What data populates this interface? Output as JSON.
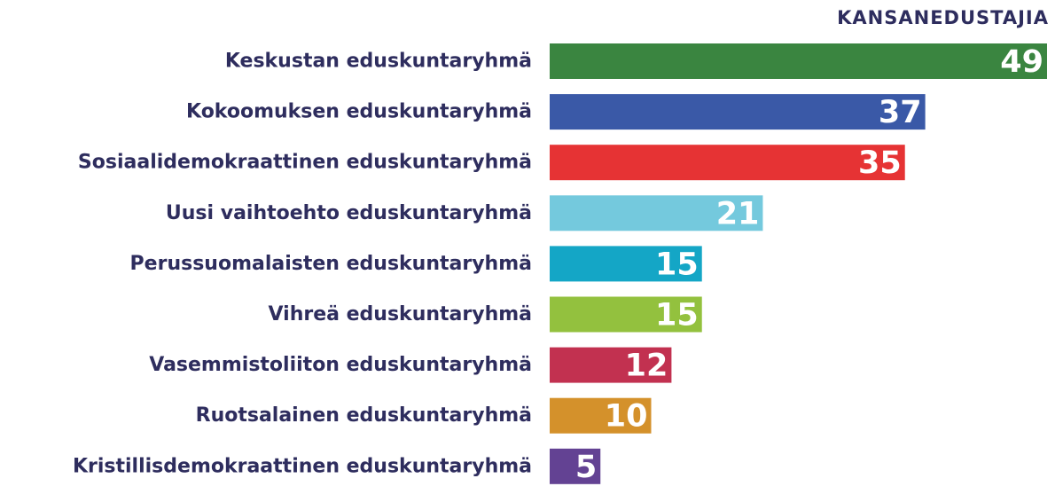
{
  "chart_data": {
    "type": "bar",
    "orientation": "horizontal",
    "title": "",
    "xlabel": "",
    "ylabel": "",
    "value_header": "KANSANEDUSTAJIA",
    "categories": [
      "Keskustan eduskuntaryhmä",
      "Kokoomuksen eduskuntaryhmä",
      "Sosiaalidemokraattinen eduskuntaryhmä",
      "Uusi vaihtoehto eduskuntaryhmä",
      "Perussuomalaisten eduskuntaryhmä",
      "Vihreä eduskuntaryhmä",
      "Vasemmistoliiton eduskuntaryhmä",
      "Ruotsalainen eduskuntaryhmä",
      "Kristillisdemokraattinen eduskuntaryhmä"
    ],
    "values": [
      49,
      37,
      35,
      21,
      15,
      15,
      12,
      10,
      5
    ],
    "value_labels": [
      "49",
      "37",
      "35",
      "21",
      "15",
      "15",
      "12",
      "10",
      "5"
    ],
    "colors": [
      "#3a8540",
      "#3a59a7",
      "#e63334",
      "#74c9dd",
      "#14a6c6",
      "#93c13e",
      "#c23150",
      "#d4912b",
      "#634293"
    ],
    "xlim": [
      0,
      49
    ],
    "grid": false,
    "legend": "none",
    "value_labels_position": "inside-end"
  }
}
